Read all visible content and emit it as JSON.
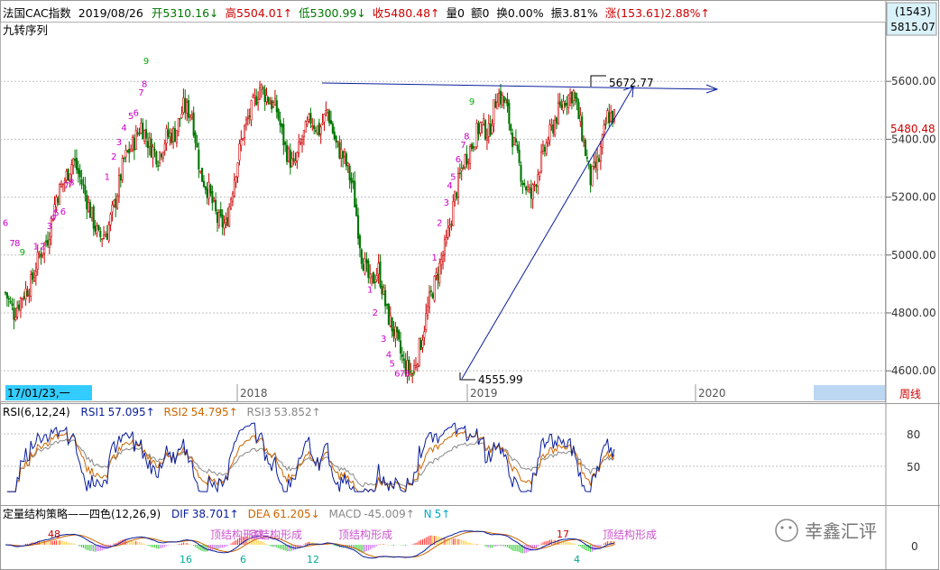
{
  "header": {
    "symbol": "法国CAC指数",
    "date": "2019/08/26",
    "open_label": "开",
    "open": "5310.16↓",
    "high_label": "高",
    "high": "5504.01↑",
    "low_label": "低",
    "low": "5300.99↓",
    "close_label": "收",
    "close": "5480.48↑",
    "vol": "量0",
    "amt": "额0",
    "turnover": "换0.00%",
    "amplitude": "振3.81%",
    "change_label": "涨",
    "change": "(153.61)2.88%↑",
    "indicator": "九转序列"
  },
  "right_box": {
    "count": "(1543)",
    "value": "5815.07",
    "price_tag": "5480.48"
  },
  "colors": {
    "up": "#cc0000",
    "down": "#007700",
    "trend": "#0a1e9c",
    "grid": "#c0c0c0",
    "rsi1": "#0a1e9c",
    "rsi2": "#cc6600",
    "rsi3": "#888888",
    "highlight": "#33ccff",
    "date_box": "#bcd7f2",
    "purple": "#cc00cc",
    "green_count": "#00aa00"
  },
  "time_axis": {
    "cursor_label": "17/01/23,一",
    "period_label": "周线",
    "labels": [
      "2018",
      "2019",
      "2020"
    ]
  },
  "chart_data": [
    {
      "type": "candlestick",
      "title": "法国CAC指数",
      "ylim": [
        4560,
        5800
      ],
      "yticks": [
        4600,
        4800,
        5000,
        5200,
        5400,
        5600
      ],
      "ytick_labels": [
        "4600.00",
        "4800.00",
        "5000.00",
        "5200.00",
        "5400.00",
        "5600.00"
      ],
      "grid": true,
      "annotations": {
        "peak": "5672.77",
        "trough": "4555.99"
      },
      "approx_path": [
        [
          0,
          4870
        ],
        [
          5,
          4800
        ],
        [
          10,
          4860
        ],
        [
          15,
          4900
        ],
        [
          20,
          5000
        ],
        [
          25,
          5060
        ],
        [
          30,
          5200
        ],
        [
          35,
          5260
        ],
        [
          40,
          5330
        ],
        [
          45,
          5250
        ],
        [
          50,
          5150
        ],
        [
          55,
          5060
        ],
        [
          60,
          5080
        ],
        [
          65,
          5190
        ],
        [
          70,
          5330
        ],
        [
          75,
          5380
        ],
        [
          80,
          5450
        ],
        [
          85,
          5380
        ],
        [
          90,
          5340
        ],
        [
          95,
          5410
        ],
        [
          100,
          5420
        ],
        [
          105,
          5510
        ],
        [
          110,
          5490
        ],
        [
          115,
          5280
        ],
        [
          120,
          5220
        ],
        [
          125,
          5120
        ],
        [
          130,
          5100
        ],
        [
          135,
          5270
        ],
        [
          140,
          5420
        ],
        [
          145,
          5500
        ],
        [
          150,
          5580
        ],
        [
          155,
          5540
        ],
        [
          160,
          5500
        ],
        [
          165,
          5370
        ],
        [
          170,
          5300
        ],
        [
          175,
          5400
        ],
        [
          180,
          5470
        ],
        [
          185,
          5430
        ],
        [
          190,
          5500
        ],
        [
          195,
          5380
        ],
        [
          200,
          5330
        ],
        [
          205,
          5230
        ],
        [
          210,
          5000
        ],
        [
          215,
          4900
        ],
        [
          220,
          4950
        ],
        [
          225,
          4800
        ],
        [
          230,
          4720
        ],
        [
          235,
          4620
        ],
        [
          240,
          4590
        ],
        [
          245,
          4700
        ],
        [
          250,
          4840
        ],
        [
          255,
          4940
        ],
        [
          260,
          5040
        ],
        [
          265,
          5200
        ],
        [
          270,
          5320
        ],
        [
          275,
          5380
        ],
        [
          280,
          5450
        ],
        [
          285,
          5420
        ],
        [
          290,
          5560
        ],
        [
          295,
          5520
        ],
        [
          300,
          5380
        ],
        [
          305,
          5260
        ],
        [
          310,
          5200
        ],
        [
          315,
          5310
        ],
        [
          320,
          5400
        ],
        [
          325,
          5480
        ],
        [
          330,
          5540
        ],
        [
          335,
          5560
        ],
        [
          340,
          5420
        ],
        [
          345,
          5260
        ],
        [
          350,
          5330
        ],
        [
          355,
          5480
        ]
      ],
      "td_counts": [
        {
          "i": 0,
          "v": 5100,
          "t": "6"
        },
        {
          "i": 4,
          "v": 5030,
          "t": "7"
        },
        {
          "i": 7,
          "v": 5030,
          "t": "8"
        },
        {
          "i": 10,
          "v": 5000,
          "t": "9"
        },
        {
          "i": 18,
          "v": 5020,
          "t": "1"
        },
        {
          "i": 22,
          "v": 5020,
          "t": "2"
        },
        {
          "i": 26,
          "v": 5090,
          "t": "3"
        },
        {
          "i": 28,
          "v": 5120,
          "t": "4"
        },
        {
          "i": 30,
          "v": 5135,
          "t": "5"
        },
        {
          "i": 34,
          "v": 5140,
          "t": "6"
        },
        {
          "i": 36,
          "v": 5230,
          "t": "7"
        },
        {
          "i": 39,
          "v": 5240,
          "t": "8"
        },
        {
          "i": 60,
          "v": 5260,
          "t": "1"
        },
        {
          "i": 64,
          "v": 5330,
          "t": "2"
        },
        {
          "i": 67,
          "v": 5380,
          "t": "3"
        },
        {
          "i": 70,
          "v": 5430,
          "t": "4"
        },
        {
          "i": 74,
          "v": 5470,
          "t": "5"
        },
        {
          "i": 77,
          "v": 5480,
          "t": "6"
        },
        {
          "i": 80,
          "v": 5550,
          "t": "7"
        },
        {
          "i": 82,
          "v": 5580,
          "t": "8"
        },
        {
          "i": 83,
          "v": 5660,
          "t": "9"
        },
        {
          "i": 215,
          "v": 4870,
          "t": "1"
        },
        {
          "i": 218,
          "v": 4790,
          "t": "2"
        },
        {
          "i": 223,
          "v": 4700,
          "t": "3"
        },
        {
          "i": 226,
          "v": 4645,
          "t": "4"
        },
        {
          "i": 228,
          "v": 4615,
          "t": "5"
        },
        {
          "i": 231,
          "v": 4580,
          "t": "6"
        },
        {
          "i": 234,
          "v": 4580,
          "t": "7"
        },
        {
          "i": 237,
          "v": 4580,
          "t": "8"
        },
        {
          "i": 240,
          "v": 4580,
          "t": "9"
        },
        {
          "i": 253,
          "v": 4980,
          "t": "1"
        },
        {
          "i": 256,
          "v": 5100,
          "t": "2"
        },
        {
          "i": 260,
          "v": 5170,
          "t": "3"
        },
        {
          "i": 262,
          "v": 5230,
          "t": "4"
        },
        {
          "i": 264,
          "v": 5260,
          "t": "5"
        },
        {
          "i": 267,
          "v": 5320,
          "t": "6"
        },
        {
          "i": 270,
          "v": 5370,
          "t": "7"
        },
        {
          "i": 272,
          "v": 5400,
          "t": "8"
        },
        {
          "i": 275,
          "v": 5520,
          "t": "9"
        }
      ]
    },
    {
      "type": "line",
      "title": "RSI(6,12,24)",
      "ylim": [
        10,
        100
      ],
      "yticks": [
        50,
        80
      ],
      "series": [
        {
          "name": "RSI1",
          "value": "57.095↑"
        },
        {
          "name": "RSI2",
          "value": "54.795↑"
        },
        {
          "name": "RSI3",
          "value": "53.852↑"
        }
      ]
    },
    {
      "type": "bar",
      "title": "定量结构策略——四色(12,26,9)",
      "yticks": [
        0
      ],
      "indicators": [
        {
          "name": "DIF",
          "value": "38.701↑"
        },
        {
          "name": "DEA",
          "value": "61.205↓"
        },
        {
          "name": "MACD",
          "value": "-45.009↑"
        },
        {
          "name": "N",
          "value": "5↑"
        }
      ],
      "labels": [
        {
          "x": 53,
          "t": "48"
        },
        {
          "x": 199,
          "t": "16"
        },
        {
          "x": 266,
          "t": "6"
        },
        {
          "x": 340,
          "t": "12"
        },
        {
          "x": 617,
          "t": "17"
        },
        {
          "x": 636,
          "t": "4"
        }
      ],
      "overlay_texts": [
        {
          "x": 233,
          "t": "顶结构形成"
        },
        {
          "x": 275,
          "t": "底结构形成"
        },
        {
          "x": 375,
          "t": "顶结构形成"
        },
        {
          "x": 668,
          "t": "顶结构形成"
        }
      ]
    }
  ],
  "watermark": "幸鑫汇评"
}
